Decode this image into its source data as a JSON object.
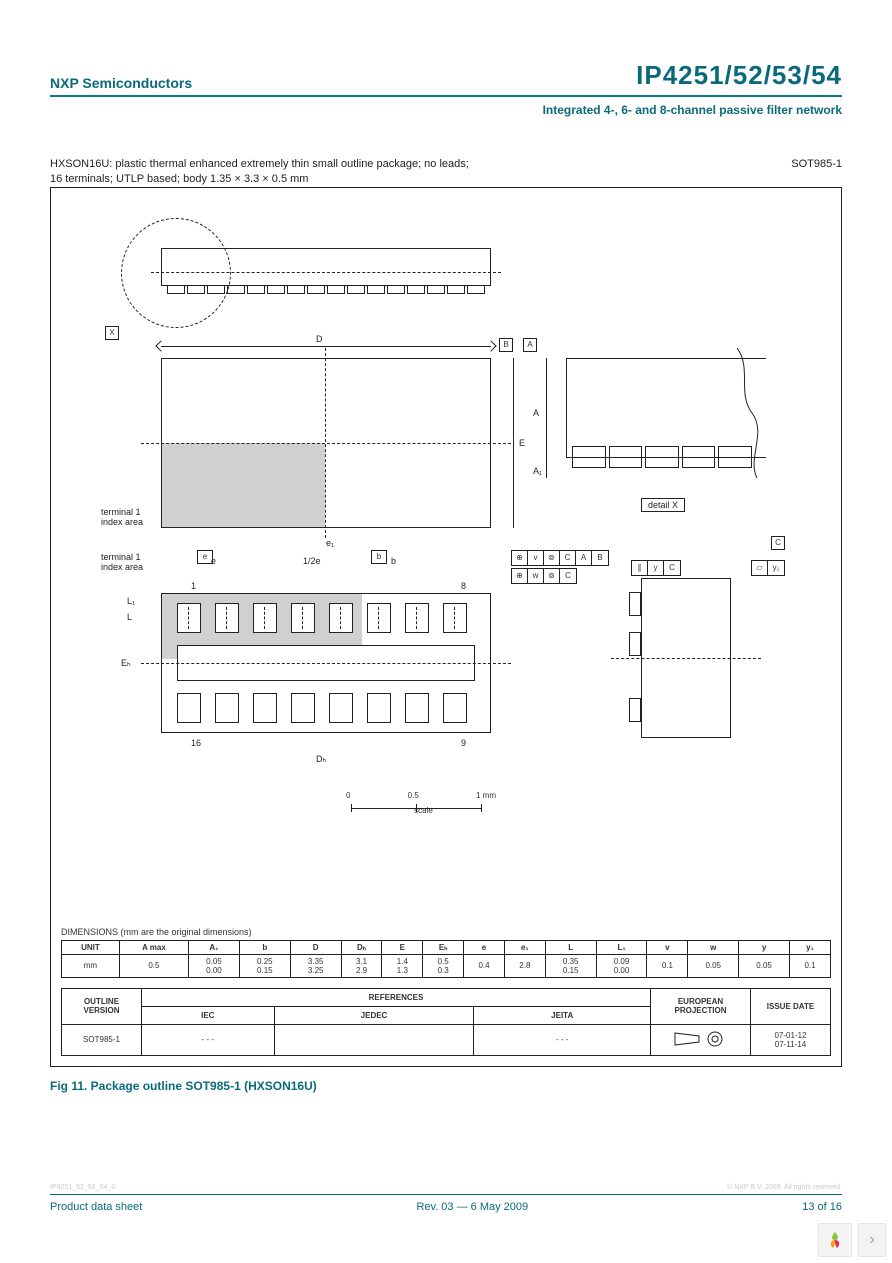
{
  "header": {
    "company": "NXP Semiconductors",
    "part_number": "IP4251/52/53/54",
    "subtitle": "Integrated 4-, 6- and 8-channel passive filter network"
  },
  "package": {
    "description_line1": "HXSON16U: plastic thermal enhanced extremely thin small outline package; no leads;",
    "description_line2": "16 terminals; UTLP based; body 1.35 × 3.3 × 0.5 mm",
    "outline_code": "SOT985-1",
    "terminal_label": "terminal 1\nindex area",
    "detail_label": "detail X",
    "scale_label": "scale",
    "scale_ticks": [
      "0",
      "0.5",
      "1 mm"
    ],
    "dim_letters": {
      "D": "D",
      "E": "E",
      "A": "A",
      "A1": "A₁",
      "B": "B",
      "e": "e",
      "e1": "e₁",
      "b": "b",
      "half_e": "1/2e",
      "L": "L",
      "L1": "L₁",
      "Eh": "Eₕ",
      "Dh": "Dₕ",
      "C": "C",
      "v": "v",
      "w": "w",
      "y": "y",
      "y1": "y₁",
      "X": "X"
    },
    "pin_numbers": {
      "p1": "1",
      "p8": "8",
      "p9": "9",
      "p16": "16"
    }
  },
  "gd_tolerances": {
    "row1": [
      "⊕",
      "v",
      "⊚",
      "C",
      "A",
      "B"
    ],
    "row2": [
      "⊕",
      "w",
      "⊚",
      "C"
    ],
    "par": [
      "∥",
      "y",
      "C"
    ],
    "flat": [
      "⏥",
      "y₁"
    ]
  },
  "dimensions_table": {
    "title": "DIMENSIONS (mm are the original dimensions)",
    "headers": [
      "UNIT",
      "A max",
      "A₁",
      "b",
      "D",
      "Dₕ",
      "E",
      "Eₕ",
      "e",
      "e₁",
      "L",
      "L₁",
      "v",
      "w",
      "y",
      "y₁"
    ],
    "row_label": "mm",
    "values_top": [
      "0.5",
      "0.05",
      "0.25",
      "3.35",
      "3.1",
      "1.4",
      "0.5",
      "0.4",
      "2.8",
      "0.35",
      "0.09",
      "0.1",
      "0.05",
      "0.05",
      "0.1"
    ],
    "values_bottom": [
      "",
      "0.00",
      "0.15",
      "3.25",
      "2.9",
      "1.3",
      "0.3",
      "",
      "",
      "0.15",
      "0.00",
      "",
      "",
      "",
      ""
    ]
  },
  "references_table": {
    "headers": {
      "outline": "OUTLINE VERSION",
      "refs": "REFERENCES",
      "iec": "IEC",
      "jedec": "JEDEC",
      "jeita": "JEITA",
      "proj": "EUROPEAN PROJECTION",
      "issue": "ISSUE DATE"
    },
    "outline_version": "SOT985-1",
    "iec": "- - -",
    "jedec": "",
    "jeita": "- - -",
    "issue_dates": [
      "07-01-12",
      "07-11-14"
    ]
  },
  "figure_caption": "Fig 11. Package outline SOT985-1 (HXSON16U)",
  "footer": {
    "left": "Product data sheet",
    "center": "Rev. 03 — 6 May 2009",
    "right": "13 of 16",
    "tiny_left": "IP4251_52_53_54_3",
    "tiny_right": "© NXP B.V. 2009. All rights reserved."
  },
  "colors": {
    "brand": "#0a6a7a",
    "rule": "#222222",
    "fill_gray": "#d0d0d0",
    "bg": "#ffffff"
  }
}
